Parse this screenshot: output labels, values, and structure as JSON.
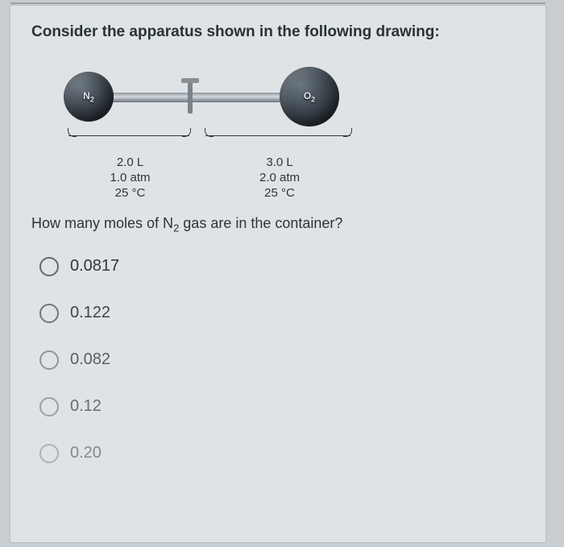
{
  "prompt": "Consider the apparatus shown in the following drawing:",
  "apparatus": {
    "left_gas_html": "N<sub>2</sub>",
    "right_gas_html": "O<sub>2</sub>",
    "left": {
      "volume": "2.0 L",
      "pressure": "1.0 atm",
      "temperature": "25 °C"
    },
    "right": {
      "volume": "3.0 L",
      "pressure": "2.0 atm",
      "temperature": "25 °C"
    },
    "flask_gradient_dark": "#1f262d",
    "tube_color": "#8b949c"
  },
  "question_html": "How many moles of N<sub>2</sub> gas are in the container?",
  "options": [
    {
      "label": "0.0817",
      "text_color": "#2c3740",
      "ring_color": "#5f6a72"
    },
    {
      "label": "0.122",
      "text_color": "#3a4750",
      "ring_color": "#6d7880"
    },
    {
      "label": "0.082",
      "text_color": "#556069",
      "ring_color": "#8b969e"
    },
    {
      "label": "0.12",
      "text_color": "#63707a",
      "ring_color": "#97a2aa"
    },
    {
      "label": "0.20",
      "text_color": "#7e8b94",
      "ring_color": "#a9b3ba"
    }
  ],
  "colors": {
    "page_bg": "#c8cdd1",
    "card_bg": "#dfe3e5",
    "text_primary": "#28323a"
  }
}
